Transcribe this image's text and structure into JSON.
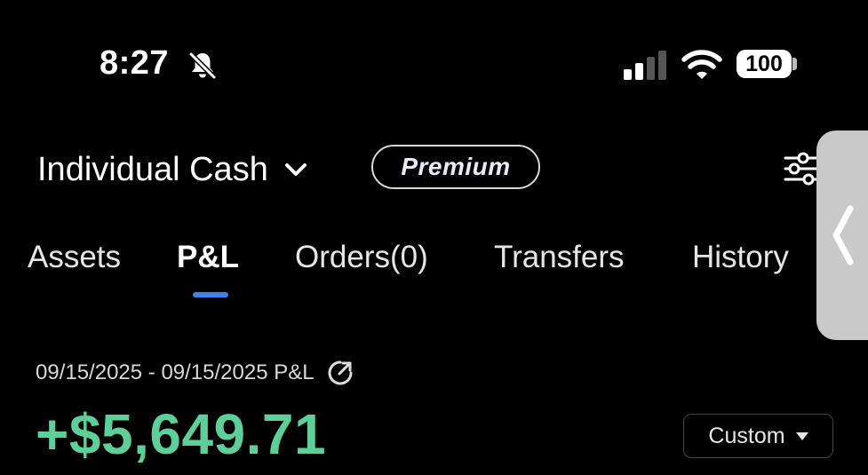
{
  "status_bar": {
    "time": "8:27",
    "battery": "100",
    "icons": [
      "bell-slash-icon",
      "cellular-signal-icon",
      "wifi-icon",
      "battery-icon"
    ]
  },
  "header": {
    "account_name": "Individual Cash",
    "badge": "Premium",
    "icons": [
      "chevron-down-icon",
      "sliders-icon"
    ]
  },
  "tabs": [
    {
      "label": "Assets",
      "active": false
    },
    {
      "label": "P&L",
      "active": true
    },
    {
      "label": "Orders(0)",
      "active": false
    },
    {
      "label": "Transfers",
      "active": false
    },
    {
      "label": "History",
      "active": false
    }
  ],
  "pl": {
    "range_label": "09/15/2025 - 09/15/2025 P&L",
    "value": "+$5,649.71",
    "filter_label": "Custom"
  },
  "colors": {
    "background": "#000000",
    "positive": "#5fcf9a",
    "accent": "#3b82f6"
  }
}
